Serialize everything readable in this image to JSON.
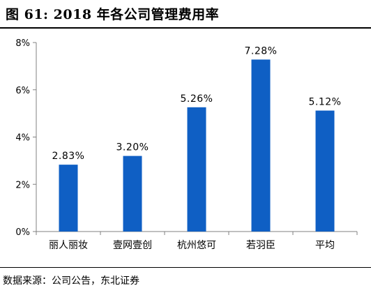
{
  "figure_title": "图 61:  2018 年各公司管理费用率",
  "source_note": "数据来源：公司公告，东北证券",
  "chart_data": {
    "type": "bar",
    "title": "",
    "xlabel": "",
    "ylabel": "",
    "categories": [
      "丽人丽妆",
      "壹网壹创",
      "杭州悠可",
      "若羽臣",
      "平均"
    ],
    "values": [
      2.83,
      3.2,
      5.26,
      7.28,
      5.12
    ],
    "value_labels": [
      "2.83%",
      "3.20%",
      "5.26%",
      "7.28%",
      "5.12%"
    ],
    "ylim": [
      0,
      8
    ],
    "yticks": [
      0,
      2,
      4,
      6,
      8
    ],
    "ytick_labels": [
      "0%",
      "2%",
      "4%",
      "6%",
      "8%"
    ],
    "bar_color": "#0f5fc4",
    "grid": false,
    "legend": "none"
  }
}
